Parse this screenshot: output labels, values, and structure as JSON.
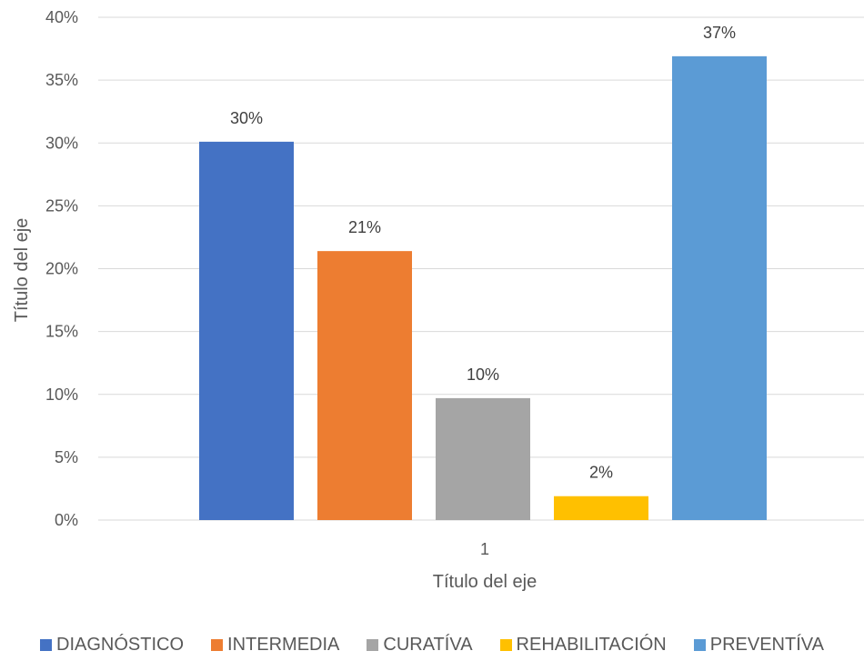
{
  "chart_data": {
    "type": "bar",
    "categories": [
      "1"
    ],
    "series": [
      {
        "name": "DIAGNÓSTICO",
        "values": [
          30.1
        ],
        "label": "30%",
        "color": "#4472C4"
      },
      {
        "name": "INTERMEDIA",
        "values": [
          21.4
        ],
        "label": "21%",
        "color": "#ED7D31"
      },
      {
        "name": "CURATÍVA",
        "values": [
          9.7
        ],
        "label": "10%",
        "color": "#A5A5A5"
      },
      {
        "name": "REHABILITACIÓN",
        "values": [
          1.9
        ],
        "label": "2%",
        "color": "#FFC000"
      },
      {
        "name": "PREVENTÍVA",
        "values": [
          36.9
        ],
        "label": "37%",
        "color": "#5B9BD5"
      }
    ],
    "title": "",
    "xlabel": "Título del eje",
    "ylabel": "Título del eje",
    "ylim": [
      0,
      40
    ],
    "yticks": [
      "0%",
      "5%",
      "10%",
      "15%",
      "20%",
      "25%",
      "30%",
      "35%",
      "40%"
    ],
    "grid": true,
    "legend_position": "bottom"
  }
}
